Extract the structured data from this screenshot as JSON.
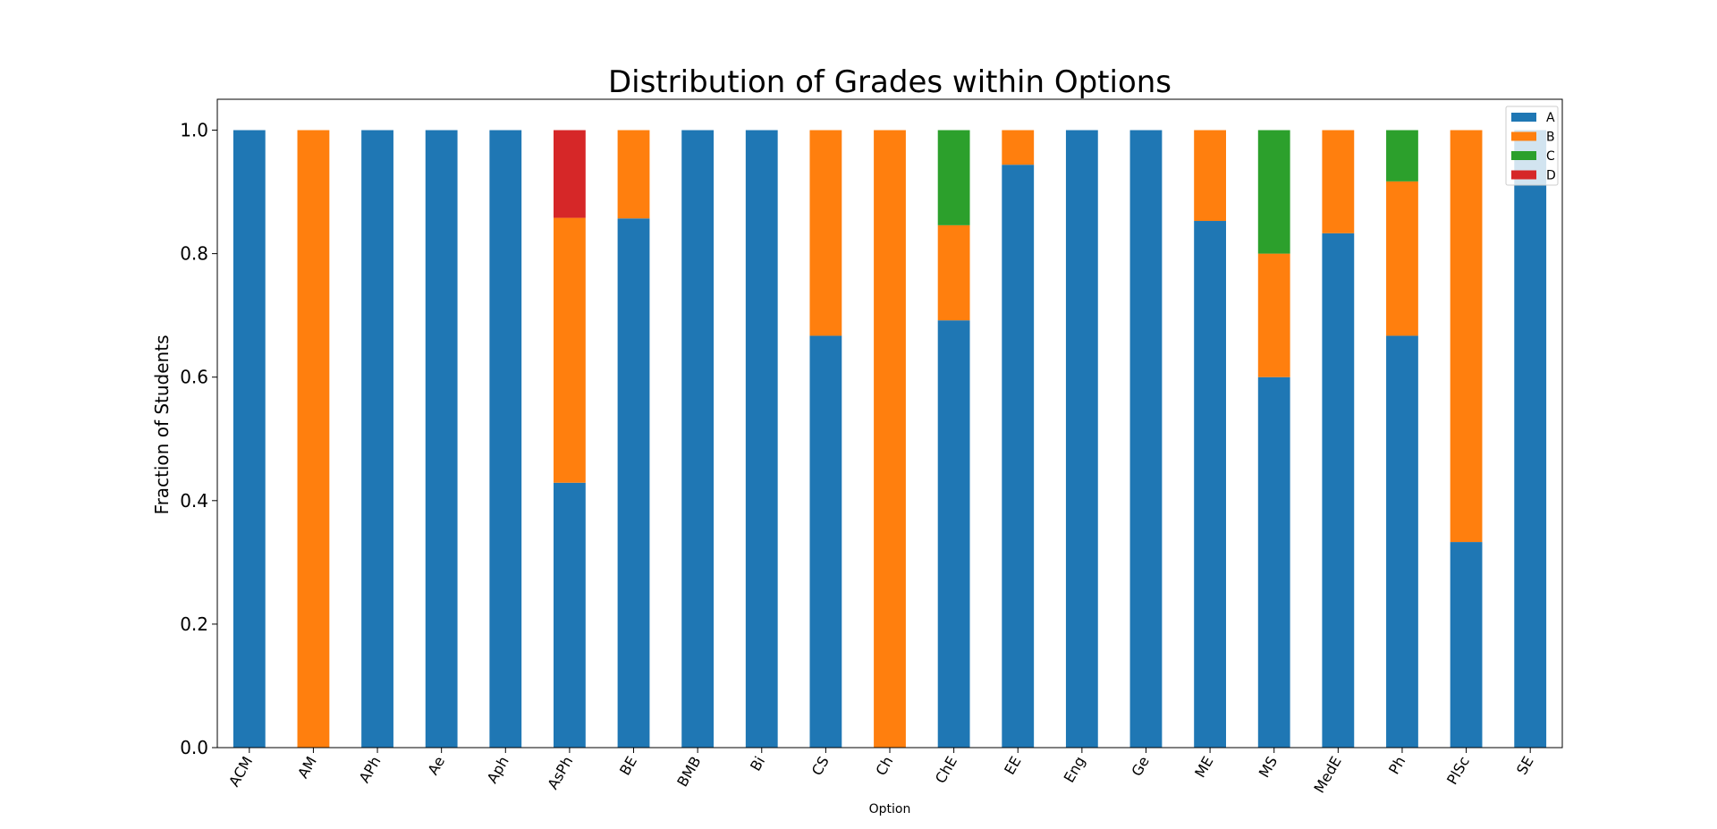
{
  "chart_data": {
    "type": "bar",
    "stacked": true,
    "title": "Distribution of Grades within Options",
    "xlabel": "Option",
    "ylabel": "Fraction of Students",
    "ylim": [
      0,
      1.05
    ],
    "yticks": [
      "0.0",
      "0.2",
      "0.4",
      "0.6",
      "0.8",
      "1.0"
    ],
    "legend_position": "top-right",
    "grid": false,
    "categories": [
      "ACM",
      "AM",
      "APh",
      "Ae",
      "Aph",
      "AsPh",
      "BE",
      "BMB",
      "Bi",
      "CS",
      "Ch",
      "ChE",
      "EE",
      "Eng",
      "Ge",
      "ME",
      "MS",
      "MedE",
      "Ph",
      "PlSc",
      "SE"
    ],
    "series": [
      {
        "name": "A",
        "color": "#1f77b4",
        "values": [
          1.0,
          0.0,
          1.0,
          1.0,
          1.0,
          0.429,
          0.857,
          1.0,
          1.0,
          0.667,
          0.0,
          0.692,
          0.944,
          1.0,
          1.0,
          0.853,
          0.6,
          0.833,
          0.667,
          0.333,
          1.0
        ]
      },
      {
        "name": "B",
        "color": "#ff7f0e",
        "values": [
          0.0,
          1.0,
          0.0,
          0.0,
          0.0,
          0.429,
          0.143,
          0.0,
          0.0,
          0.333,
          1.0,
          0.154,
          0.056,
          0.0,
          0.0,
          0.147,
          0.2,
          0.167,
          0.25,
          0.667,
          0.0
        ]
      },
      {
        "name": "C",
        "color": "#2ca02c",
        "values": [
          0.0,
          0.0,
          0.0,
          0.0,
          0.0,
          0.0,
          0.0,
          0.0,
          0.0,
          0.0,
          0.0,
          0.154,
          0.0,
          0.0,
          0.0,
          0.0,
          0.2,
          0.0,
          0.083,
          0.0,
          0.0
        ]
      },
      {
        "name": "D",
        "color": "#d62728",
        "values": [
          0.0,
          0.0,
          0.0,
          0.0,
          0.0,
          0.142,
          0.0,
          0.0,
          0.0,
          0.0,
          0.0,
          0.0,
          0.0,
          0.0,
          0.0,
          0.0,
          0.0,
          0.0,
          0.0,
          0.0,
          0.0
        ]
      }
    ]
  }
}
